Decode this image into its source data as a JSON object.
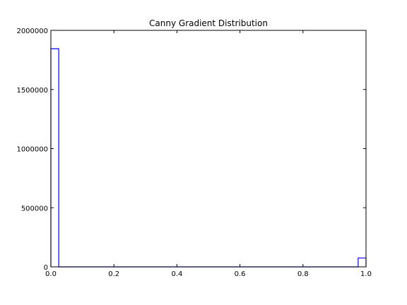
{
  "chart_data": {
    "type": "bar",
    "style": "step-histogram",
    "title": "Canny Gradient Distribution",
    "xlabel": "",
    "ylabel": "",
    "xlim": [
      0.0,
      1.0
    ],
    "ylim": [
      0,
      2000000
    ],
    "x_ticks": [
      0.0,
      0.2,
      0.4,
      0.6,
      0.8,
      1.0
    ],
    "x_tick_labels": [
      "0.0",
      "0.2",
      "0.4",
      "0.6",
      "0.8",
      "1.0"
    ],
    "y_ticks": [
      0,
      500000,
      1000000,
      1500000,
      2000000
    ],
    "y_tick_labels": [
      "0",
      "500000",
      "1000000",
      "1500000",
      "2000000"
    ],
    "bin_edges": [
      0.0,
      0.025,
      0.05,
      0.075,
      0.1,
      0.125,
      0.15,
      0.175,
      0.2,
      0.225,
      0.25,
      0.275,
      0.3,
      0.325,
      0.35,
      0.375,
      0.4,
      0.425,
      0.45,
      0.475,
      0.5,
      0.525,
      0.55,
      0.575,
      0.6,
      0.625,
      0.65,
      0.675,
      0.7,
      0.725,
      0.75,
      0.775,
      0.8,
      0.825,
      0.85,
      0.875,
      0.9,
      0.925,
      0.95,
      0.975,
      1.0
    ],
    "counts": [
      1845000,
      0,
      0,
      0,
      0,
      0,
      0,
      0,
      0,
      0,
      0,
      0,
      0,
      0,
      0,
      0,
      0,
      0,
      0,
      0,
      0,
      0,
      0,
      0,
      0,
      0,
      0,
      0,
      0,
      0,
      0,
      0,
      0,
      0,
      0,
      0,
      0,
      0,
      0,
      75000
    ],
    "grid": false,
    "line_color": "#0000ff"
  }
}
